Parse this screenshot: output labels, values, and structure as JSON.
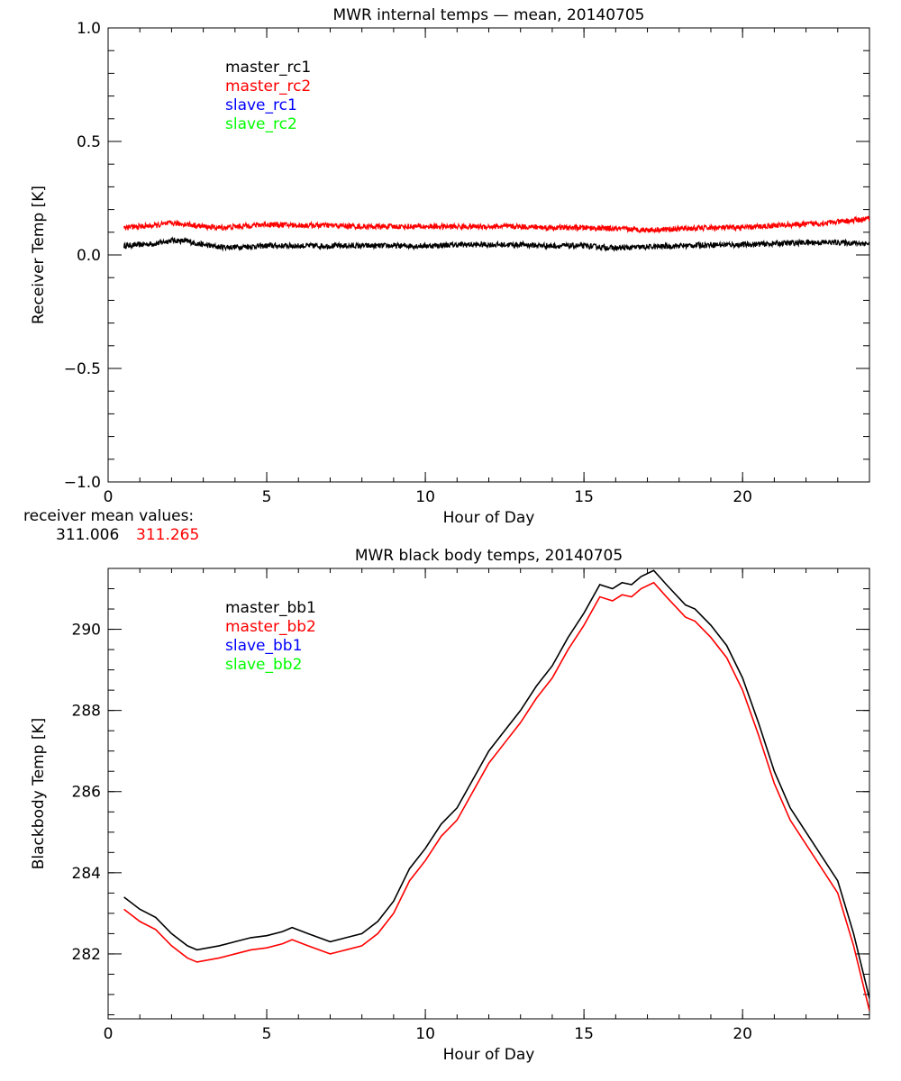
{
  "chart_data": [
    {
      "type": "line",
      "title": "MWR internal temps — mean, 20140705",
      "xlabel": "Hour of Day",
      "ylabel": "Receiver Temp [K]",
      "xlim": [
        0,
        24
      ],
      "ylim": [
        -1.0,
        1.0
      ],
      "x_ticks": [
        0,
        5,
        10,
        15,
        20
      ],
      "x_tick_labels": [
        "0",
        "5",
        "10",
        "15",
        "20"
      ],
      "y_ticks": [
        -1.0,
        -0.5,
        0.0,
        0.5,
        1.0
      ],
      "y_tick_labels": [
        "−1.0",
        "−0.5",
        "0.0",
        "0.5",
        "1.0"
      ],
      "x_minor_step": 1,
      "y_minor_step": 0.1,
      "grid": false,
      "legend_position": "top-left",
      "legend": [
        {
          "label": "master_rc1",
          "color": "#000000"
        },
        {
          "label": "master_rc2",
          "color": "#ff0000"
        },
        {
          "label": "slave_rc1",
          "color": "#0000ff"
        },
        {
          "label": "slave_rc2",
          "color": "#00ff00"
        }
      ],
      "series": [
        {
          "name": "master_rc1",
          "color": "#000000",
          "noise": 0.012,
          "x": [
            0.5,
            1,
            1.5,
            2,
            2.5,
            3,
            3.5,
            4,
            5,
            6,
            7,
            8,
            9,
            10,
            11,
            12,
            13,
            14,
            15,
            16,
            17,
            18,
            19,
            20,
            21,
            22,
            23,
            24
          ],
          "values": [
            0.04,
            0.045,
            0.05,
            0.065,
            0.06,
            0.045,
            0.035,
            0.035,
            0.04,
            0.04,
            0.04,
            0.04,
            0.04,
            0.04,
            0.045,
            0.045,
            0.045,
            0.04,
            0.04,
            0.03,
            0.035,
            0.04,
            0.045,
            0.045,
            0.05,
            0.055,
            0.055,
            0.05
          ]
        },
        {
          "name": "master_rc2",
          "color": "#ff0000",
          "noise": 0.012,
          "x": [
            0.5,
            1,
            1.5,
            2,
            2.5,
            3,
            3.5,
            4,
            5,
            6,
            7,
            8,
            9,
            10,
            11,
            12,
            13,
            14,
            15,
            16,
            17,
            18,
            19,
            20,
            21,
            22,
            23,
            24
          ],
          "values": [
            0.12,
            0.125,
            0.13,
            0.14,
            0.135,
            0.125,
            0.12,
            0.125,
            0.135,
            0.13,
            0.13,
            0.125,
            0.125,
            0.125,
            0.125,
            0.125,
            0.125,
            0.12,
            0.12,
            0.115,
            0.11,
            0.115,
            0.12,
            0.12,
            0.13,
            0.135,
            0.145,
            0.16
          ]
        }
      ],
      "annotation": {
        "label": "receiver mean values:",
        "values": [
          {
            "text": "311.006",
            "color": "#000000"
          },
          {
            "text": "311.265",
            "color": "#ff0000"
          }
        ]
      }
    },
    {
      "type": "line",
      "title": "MWR black body temps, 20140705",
      "xlabel": "Hour of Day",
      "ylabel": "Blackbody Temp [K]",
      "xlim": [
        0,
        24
      ],
      "ylim": [
        280.4,
        291.5
      ],
      "x_ticks": [
        0,
        5,
        10,
        15,
        20
      ],
      "x_tick_labels": [
        "0",
        "5",
        "10",
        "15",
        "20"
      ],
      "y_ticks": [
        282,
        284,
        286,
        288,
        290
      ],
      "y_tick_labels": [
        "282",
        "284",
        "286",
        "288",
        "290"
      ],
      "x_minor_step": 1,
      "y_minor_step": 0.5,
      "grid": false,
      "legend_position": "top-left",
      "legend": [
        {
          "label": "master_bb1",
          "color": "#000000"
        },
        {
          "label": "master_bb2",
          "color": "#ff0000"
        },
        {
          "label": "slave_bb1",
          "color": "#0000ff"
        },
        {
          "label": "slave_bb2",
          "color": "#00ff00"
        }
      ],
      "series": [
        {
          "name": "master_bb1",
          "color": "#000000",
          "x": [
            0.5,
            1,
            1.5,
            2,
            2.5,
            2.8,
            3.5,
            4,
            4.5,
            5,
            5.5,
            5.8,
            6.3,
            7,
            7.5,
            8,
            8.5,
            9,
            9.5,
            10,
            10.5,
            11,
            11.5,
            12,
            12.5,
            13,
            13.5,
            14,
            14.5,
            15,
            15.5,
            15.9,
            16.2,
            16.5,
            16.8,
            17.2,
            17.6,
            18.2,
            18.5,
            19,
            19.5,
            20,
            20.5,
            21,
            21.5,
            22,
            22.5,
            23,
            23.5,
            24
          ],
          "values": [
            283.4,
            283.1,
            282.9,
            282.5,
            282.2,
            282.1,
            282.2,
            282.3,
            282.4,
            282.45,
            282.55,
            282.65,
            282.5,
            282.3,
            282.4,
            282.5,
            282.8,
            283.3,
            284.1,
            284.6,
            285.2,
            285.6,
            286.3,
            287.0,
            287.5,
            288.0,
            288.6,
            289.1,
            289.8,
            290.4,
            291.1,
            291.0,
            291.15,
            291.1,
            291.3,
            291.45,
            291.1,
            290.6,
            290.5,
            290.1,
            289.6,
            288.8,
            287.7,
            286.5,
            285.6,
            285.0,
            284.4,
            283.8,
            282.5,
            280.9
          ]
        },
        {
          "name": "master_bb2",
          "color": "#ff0000",
          "x": [
            0.5,
            1,
            1.5,
            2,
            2.5,
            2.8,
            3.5,
            4,
            4.5,
            5,
            5.5,
            5.8,
            6.3,
            7,
            7.5,
            8,
            8.5,
            9,
            9.5,
            10,
            10.5,
            11,
            11.5,
            12,
            12.5,
            13,
            13.5,
            14,
            14.5,
            15,
            15.5,
            15.9,
            16.2,
            16.5,
            16.8,
            17.2,
            17.6,
            18.2,
            18.5,
            19,
            19.5,
            20,
            20.5,
            21,
            21.5,
            22,
            22.5,
            23,
            23.5,
            24
          ],
          "values": [
            283.1,
            282.8,
            282.6,
            282.2,
            281.9,
            281.8,
            281.9,
            282.0,
            282.1,
            282.15,
            282.25,
            282.35,
            282.2,
            282.0,
            282.1,
            282.2,
            282.5,
            283.0,
            283.8,
            284.3,
            284.9,
            285.3,
            286.0,
            286.7,
            287.2,
            287.7,
            288.3,
            288.8,
            289.5,
            290.1,
            290.8,
            290.7,
            290.85,
            290.8,
            291.0,
            291.15,
            290.8,
            290.3,
            290.2,
            289.8,
            289.3,
            288.5,
            287.4,
            286.2,
            285.3,
            284.7,
            284.1,
            283.5,
            282.2,
            280.6
          ]
        }
      ]
    }
  ]
}
